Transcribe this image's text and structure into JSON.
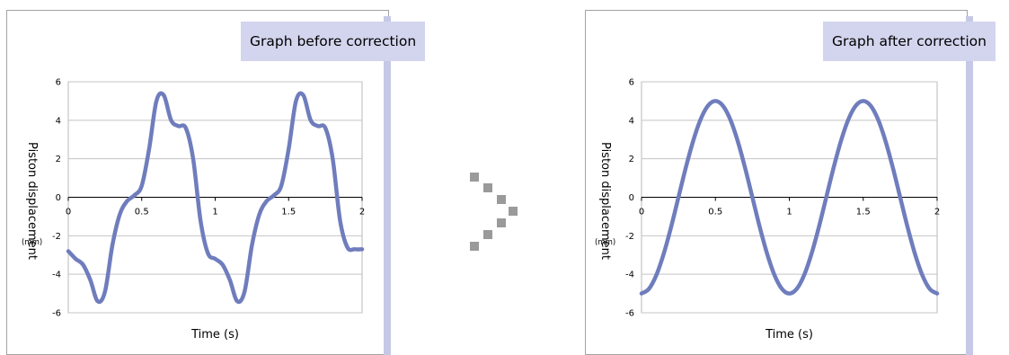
{
  "panels": {
    "before": {
      "badge": "Graph before correction"
    },
    "after": {
      "badge": "Graph after correction"
    }
  },
  "colors": {
    "line": "#6f7dbd",
    "accent": "#c6c9e6",
    "badge_bg": "#d3d5ee",
    "frame": "#a3a3a3",
    "arrow": "#9a9a9a"
  },
  "icons": {
    "transition": "chevron-right-dotted-icon"
  },
  "chart_data": [
    {
      "type": "line",
      "title": "Graph before correction",
      "xlabel": "Time (s)",
      "ylabel": "Piston displacement",
      "yunit": "(mm)",
      "xlim": [
        0,
        2
      ],
      "ylim": [
        -6,
        6
      ],
      "xticks": [
        "0",
        "0.5",
        "1",
        "1.5",
        "2"
      ],
      "yticks": [
        "6",
        "4",
        "2",
        "0",
        "-2",
        "-4",
        "-6"
      ],
      "grid": true,
      "series": [
        {
          "x": [
            0,
            0.05,
            0.1,
            0.15,
            0.2,
            0.25,
            0.3,
            0.35,
            0.4,
            0.45,
            0.5,
            0.55,
            0.6,
            0.65,
            0.7,
            0.75,
            0.8,
            0.85,
            0.9,
            0.95,
            1.0,
            1.05,
            1.1,
            1.15,
            1.2,
            1.25,
            1.3,
            1.35,
            1.4,
            1.45,
            1.5,
            1.55,
            1.6,
            1.65,
            1.7,
            1.75,
            1.8,
            1.85,
            1.9,
            1.95,
            2.0
          ],
          "y": [
            -2.8,
            -3.2,
            -3.5,
            -4.3,
            -5.4,
            -4.9,
            -2.5,
            -0.9,
            -0.2,
            0.1,
            0.6,
            2.5,
            5.0,
            5.3,
            4.0,
            3.7,
            3.6,
            2.0,
            -1.2,
            -2.9,
            -3.2,
            -3.5,
            -4.3,
            -5.4,
            -4.9,
            -2.5,
            -0.9,
            -0.2,
            0.1,
            0.6,
            2.5,
            5.0,
            5.3,
            4.0,
            3.7,
            3.6,
            2.0,
            -1.2,
            -2.6,
            -2.7,
            -2.7
          ]
        }
      ]
    },
    {
      "type": "line",
      "title": "Graph after correction",
      "xlabel": "Time (s)",
      "ylabel": "Piston displacement",
      "yunit": "(mm)",
      "xlim": [
        0,
        2
      ],
      "ylim": [
        -6,
        6
      ],
      "xticks": [
        "0",
        "0.5",
        "1",
        "1.5",
        "2"
      ],
      "yticks": [
        "6",
        "4",
        "2",
        "0",
        "-2",
        "-4",
        "-6"
      ],
      "grid": true,
      "series": [
        {
          "x": [
            0,
            0.05,
            0.1,
            0.15,
            0.2,
            0.25,
            0.3,
            0.35,
            0.4,
            0.45,
            0.5,
            0.55,
            0.6,
            0.65,
            0.7,
            0.75,
            0.8,
            0.85,
            0.9,
            0.95,
            1.0,
            1.05,
            1.1,
            1.15,
            1.2,
            1.25,
            1.3,
            1.35,
            1.4,
            1.45,
            1.5,
            1.55,
            1.6,
            1.65,
            1.7,
            1.75,
            1.8,
            1.85,
            1.9,
            1.95,
            2.0
          ],
          "y": [
            -5.0,
            -4.76,
            -4.05,
            -2.94,
            -1.55,
            0.0,
            1.55,
            2.94,
            4.05,
            4.76,
            5.0,
            4.76,
            4.05,
            2.94,
            1.55,
            0.0,
            -1.55,
            -2.94,
            -4.05,
            -4.76,
            -5.0,
            -4.76,
            -4.05,
            -2.94,
            -1.55,
            0.0,
            1.55,
            2.94,
            4.05,
            4.76,
            5.0,
            4.76,
            4.05,
            2.94,
            1.55,
            0.0,
            -1.55,
            -2.94,
            -4.05,
            -4.76,
            -5.0
          ]
        }
      ]
    }
  ]
}
